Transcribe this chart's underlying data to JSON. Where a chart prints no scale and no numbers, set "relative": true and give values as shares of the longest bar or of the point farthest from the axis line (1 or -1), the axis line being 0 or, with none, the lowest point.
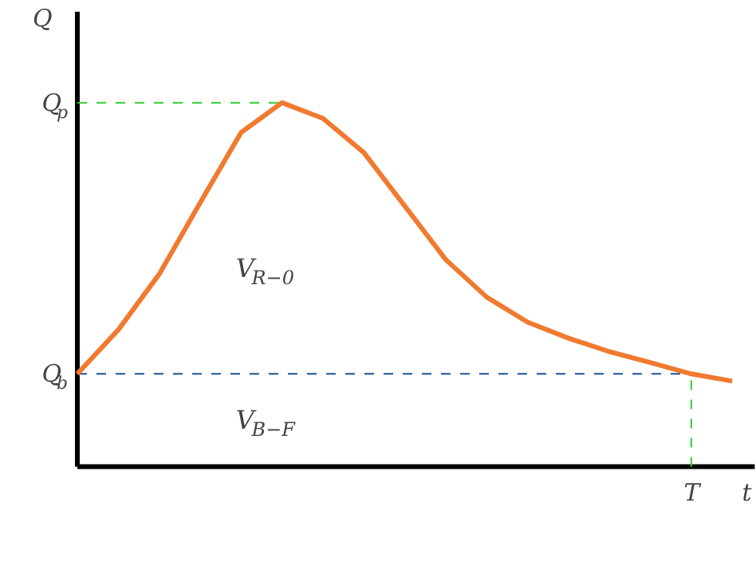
{
  "chart_data": {
    "type": "line",
    "relative": true,
    "xlabel": "t",
    "ylabel": "Q",
    "categories": [
      null,
      null,
      null,
      null,
      null,
      null,
      null,
      null,
      null,
      null,
      null,
      null,
      null,
      null,
      null,
      null,
      null
    ],
    "series": [
      {
        "color": "#f07a30",
        "values": [
          0.255,
          0.376,
          0.529,
          0.725,
          0.918,
          1,
          0.957,
          0.863,
          0.716,
          0.569,
          0.466,
          0.397,
          0.353,
          0.316,
          0.286,
          0.255,
          0.235
        ]
      }
    ],
    "ref_lines": [
      {
        "axis": "y",
        "value": 1,
        "label": "Q$_{p}$",
        "color": "#33cc33",
        "line_style": "dashed"
      },
      {
        "axis": "y",
        "value": 0.255,
        "label": "Q$_{b}$",
        "color": "#1f4e99",
        "line_style": "dashed"
      }
    ],
    "annotations": [
      "V$_{R−0}$",
      "V$_{B−F}$",
      "T"
    ],
    "grid": false,
    "marker": "none",
    "line_style": "solid"
  }
}
